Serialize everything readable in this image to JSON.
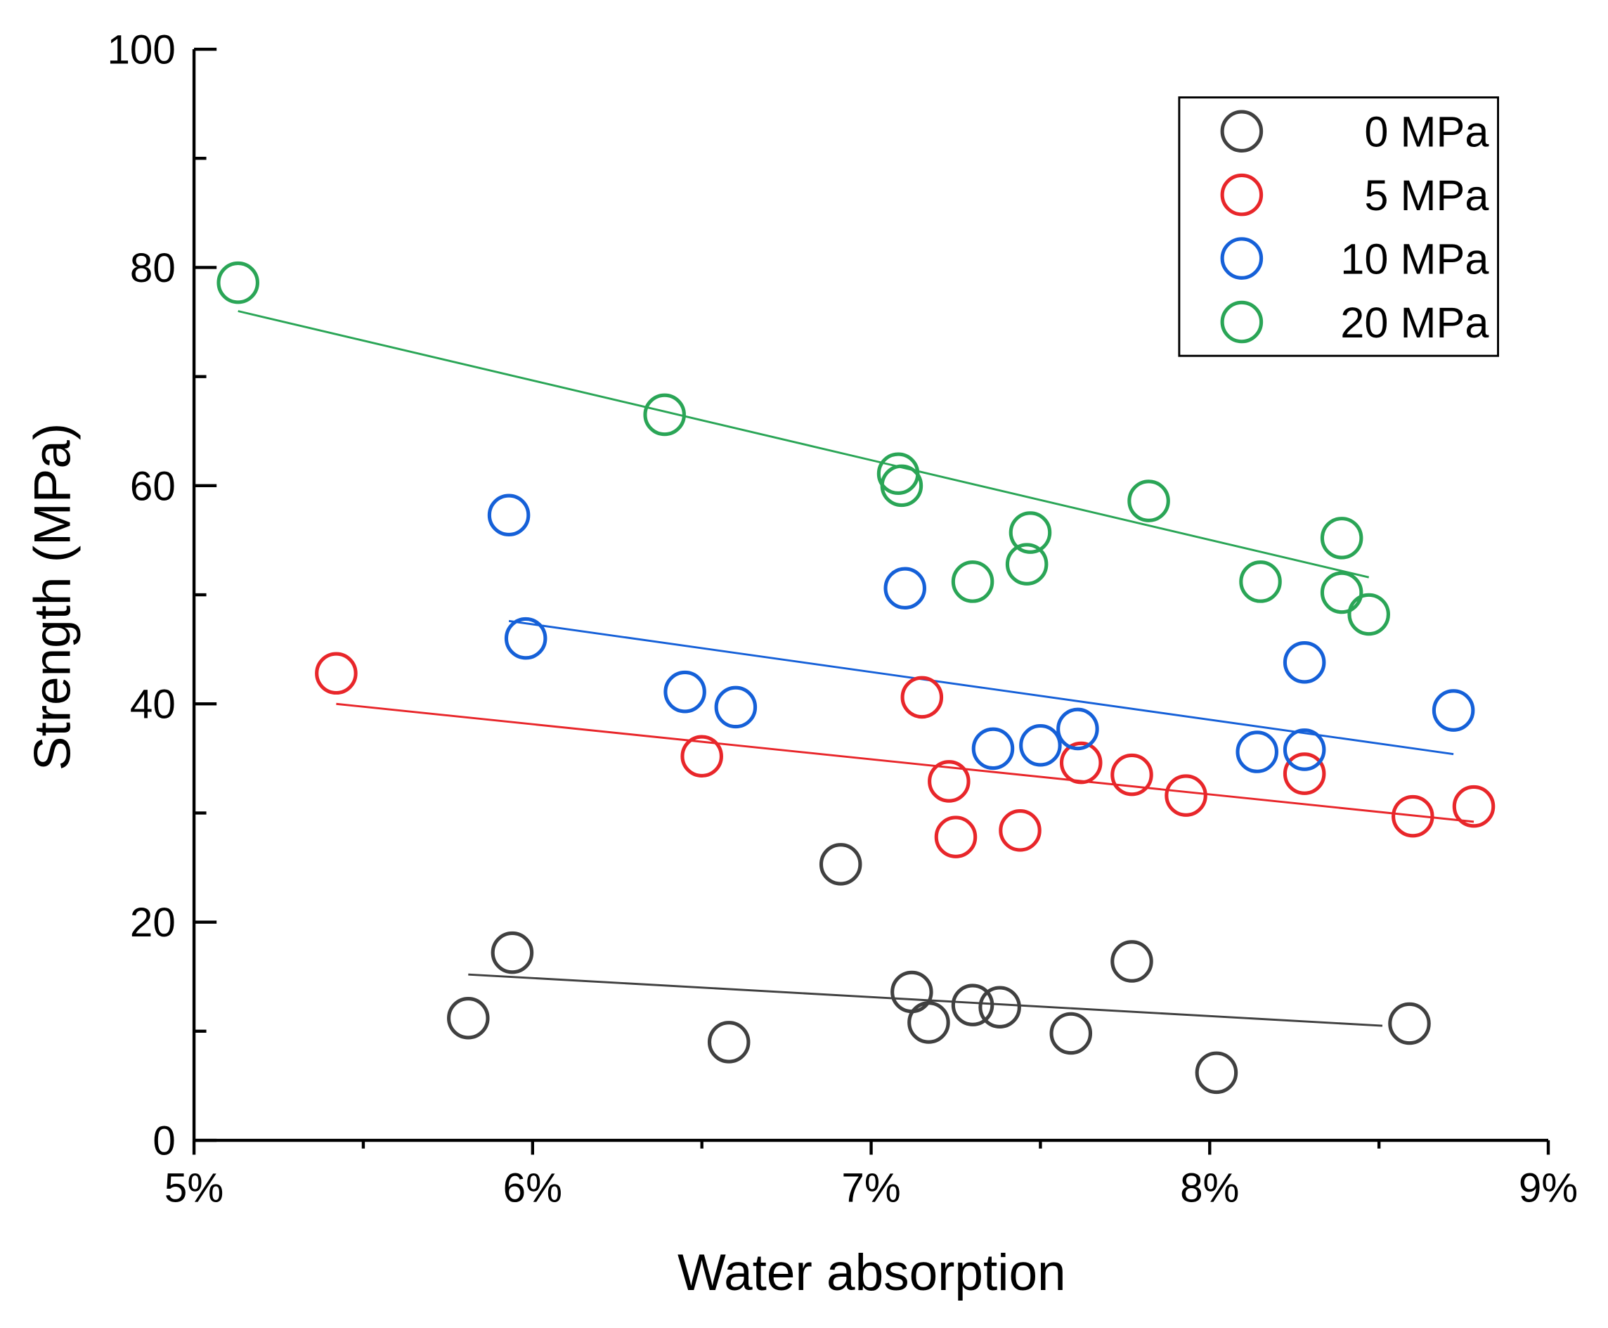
{
  "chart_data": {
    "type": "scatter",
    "title": "",
    "xlabel": "Water absorption",
    "ylabel": "Strength (MPa)",
    "xlim": [
      5,
      9
    ],
    "ylim": [
      0,
      100
    ],
    "x_ticks": [
      5,
      6,
      7,
      8,
      9
    ],
    "x_tick_labels": [
      "5%",
      "6%",
      "7%",
      "8%",
      "9%"
    ],
    "y_ticks": [
      0,
      20,
      40,
      60,
      80,
      100
    ],
    "y_tick_labels": [
      "0",
      "20",
      "40",
      "60",
      "80",
      "100"
    ],
    "grid": false,
    "legend_position": "top-right",
    "series": [
      {
        "name": "0 MPa",
        "color": "#404040",
        "x": [
          5.81,
          5.94,
          6.58,
          6.91,
          7.12,
          7.17,
          7.3,
          7.38,
          7.59,
          7.77,
          8.02,
          8.59
        ],
        "y": [
          11.2,
          17.2,
          9.0,
          25.3,
          13.6,
          10.8,
          12.4,
          12.2,
          9.8,
          16.4,
          6.2,
          10.7
        ],
        "fit": {
          "x": [
            5.81,
            8.51
          ],
          "y": [
            15.2,
            10.5
          ]
        }
      },
      {
        "name": "5 MPa",
        "color": "#e8262a",
        "x": [
          5.42,
          6.5,
          7.15,
          7.23,
          7.25,
          7.44,
          7.62,
          7.77,
          7.93,
          8.28,
          8.6,
          8.78
        ],
        "y": [
          42.8,
          35.2,
          40.6,
          32.9,
          27.8,
          28.4,
          34.6,
          33.5,
          31.6,
          33.6,
          29.7,
          30.6
        ],
        "fit": {
          "x": [
            5.42,
            8.78
          ],
          "y": [
            40.0,
            29.2
          ]
        }
      },
      {
        "name": "10 MPa",
        "color": "#1560d8",
        "x": [
          5.93,
          5.98,
          6.45,
          6.6,
          7.1,
          7.36,
          7.5,
          7.61,
          8.14,
          8.28,
          8.28,
          8.72
        ],
        "y": [
          57.3,
          46.0,
          41.1,
          39.7,
          50.6,
          35.9,
          36.2,
          37.7,
          35.6,
          43.8,
          35.8,
          39.4
        ],
        "fit": {
          "x": [
            5.93,
            8.72
          ],
          "y": [
            47.6,
            35.4
          ]
        }
      },
      {
        "name": "20 MPa",
        "color": "#2aa556",
        "x": [
          5.13,
          6.39,
          7.08,
          7.09,
          7.3,
          7.47,
          7.46,
          7.82,
          8.15,
          8.39,
          8.39,
          8.47
        ],
        "y": [
          78.6,
          66.5,
          61.1,
          60.0,
          51.2,
          55.7,
          52.8,
          58.6,
          51.2,
          55.2,
          50.2,
          48.2
        ],
        "fit": {
          "x": [
            5.13,
            8.47
          ],
          "y": [
            76.0,
            51.6
          ]
        }
      }
    ]
  }
}
